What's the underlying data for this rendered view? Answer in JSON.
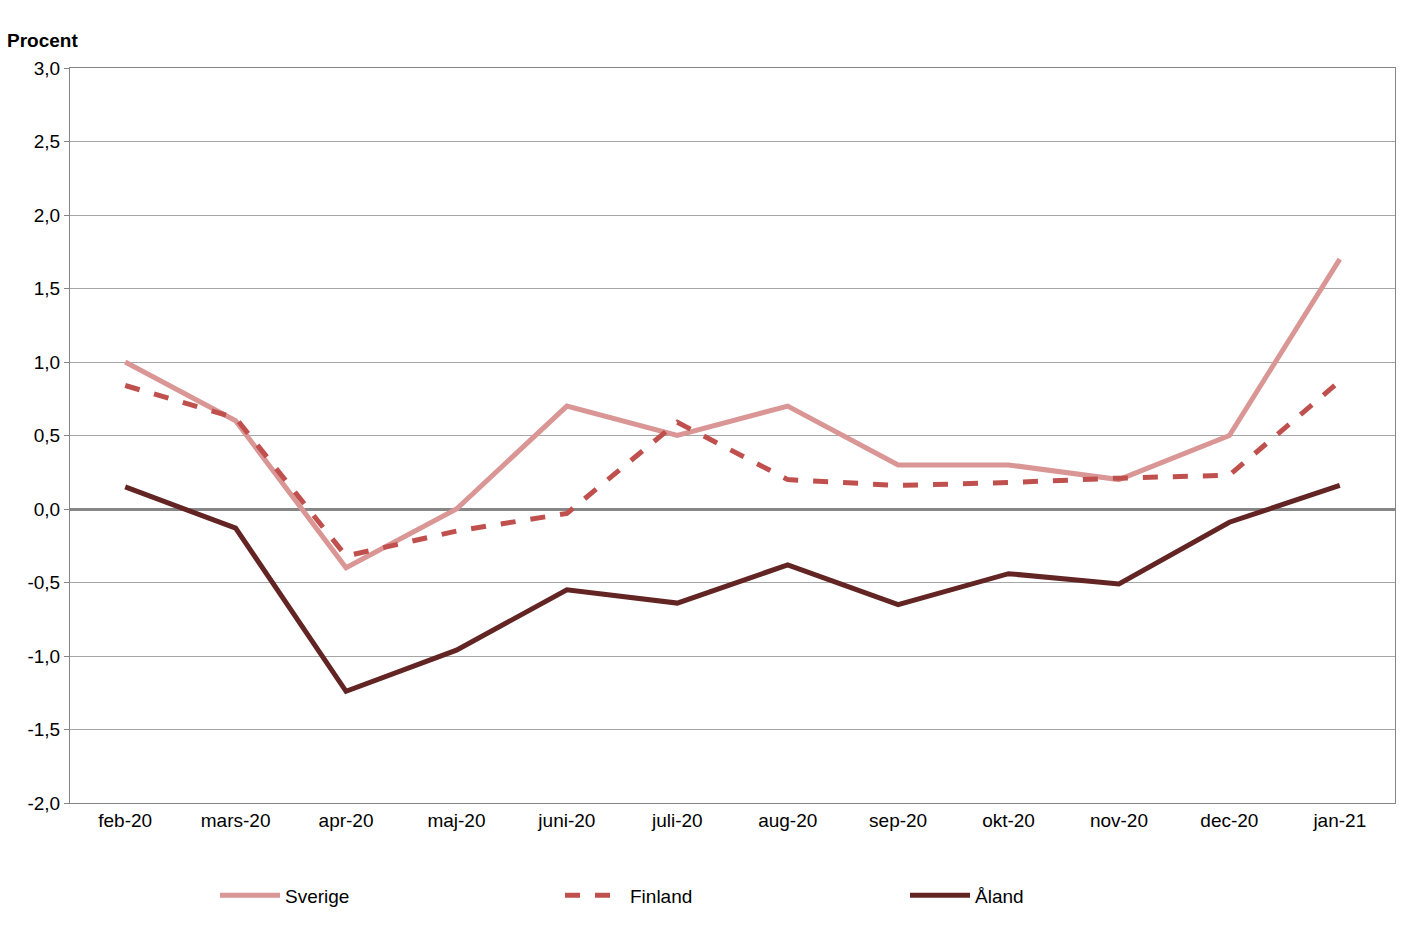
{
  "chart_data": {
    "type": "line",
    "y_label": "Procent",
    "categories": [
      "feb-20",
      "mars-20",
      "apr-20",
      "maj-20",
      "juni-20",
      "juli-20",
      "aug-20",
      "sep-20",
      "okt-20",
      "nov-20",
      "dec-20",
      "jan-21"
    ],
    "series": [
      {
        "name": "Sverige",
        "color": "#d99694",
        "line_style": "solid",
        "values": [
          1.0,
          0.6,
          -0.4,
          0.0,
          0.7,
          0.5,
          0.7,
          0.3,
          0.3,
          0.2,
          0.5,
          1.7
        ]
      },
      {
        "name": "Finland",
        "color": "#c0504d",
        "line_style": "dash",
        "values": [
          0.84,
          0.62,
          -0.32,
          -0.15,
          -0.03,
          0.59,
          0.2,
          0.16,
          0.18,
          0.21,
          0.23,
          0.87
        ]
      },
      {
        "name": "Åland",
        "color": "#632523",
        "line_style": "solid",
        "values": [
          0.15,
          -0.13,
          -1.24,
          -0.96,
          -0.55,
          -0.64,
          -0.38,
          -0.65,
          -0.44,
          -0.51,
          -0.09,
          0.16
        ]
      }
    ],
    "ylim": [
      -2.0,
      3.0
    ],
    "yticks": [
      {
        "value": -2.0,
        "label": "-2,0"
      },
      {
        "value": -1.5,
        "label": "-1,5"
      },
      {
        "value": -1.0,
        "label": "-1,0"
      },
      {
        "value": -0.5,
        "label": "-0,5"
      },
      {
        "value": 0.0,
        "label": "0,0"
      },
      {
        "value": 0.5,
        "label": "0,5"
      },
      {
        "value": 1.0,
        "label": "1,0"
      },
      {
        "value": 1.5,
        "label": "1,5"
      },
      {
        "value": 2.0,
        "label": "2,0"
      },
      {
        "value": 2.5,
        "label": "2,5"
      },
      {
        "value": 3.0,
        "label": "3,0"
      }
    ],
    "grid": true,
    "legend": "bottom"
  }
}
